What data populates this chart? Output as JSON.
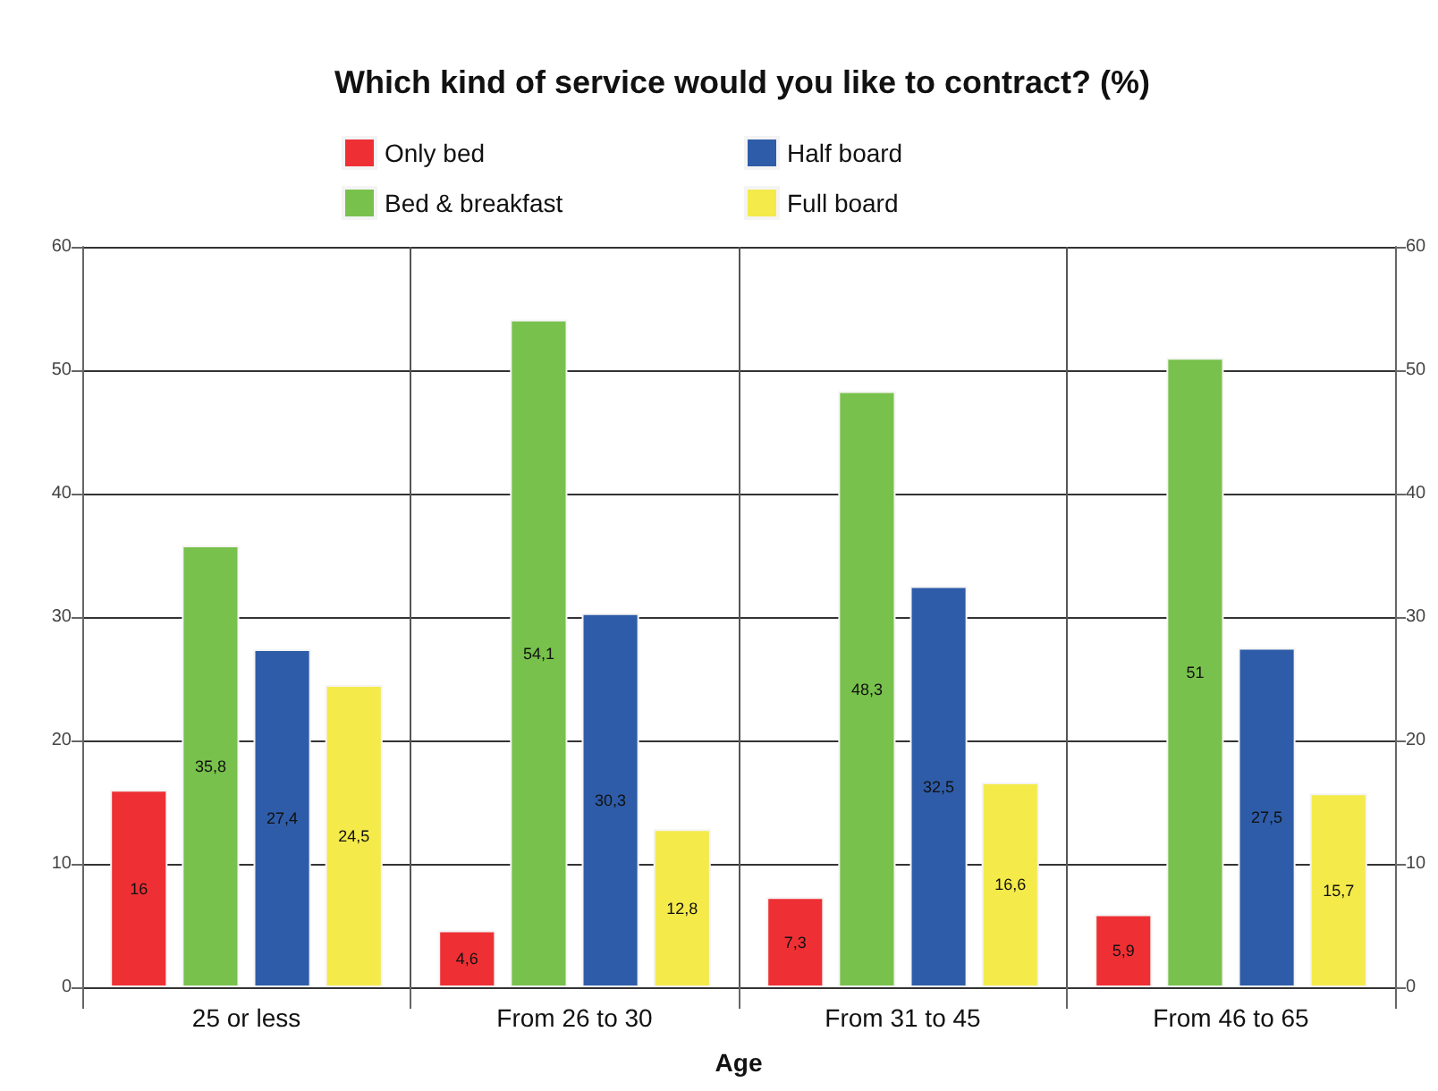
{
  "chart_data": {
    "type": "bar",
    "title": "Which kind of service would you like to contract? (%)",
    "xlabel": "Age",
    "categories": [
      "25 or less",
      "From 26 to 30",
      "From 31 to 45",
      "From 46 to 65"
    ],
    "series": [
      {
        "name": "Only bed",
        "color": "#ee3035",
        "values": [
          16,
          4.6,
          7.3,
          5.9
        ],
        "value_labels": [
          "16",
          "4,6",
          "7,3",
          "5,9"
        ]
      },
      {
        "name": "Bed & breakfast",
        "color": "#78c14c",
        "values": [
          35.8,
          54.1,
          48.3,
          51
        ],
        "value_labels": [
          "35,8",
          "54,1",
          "48,3",
          "51"
        ]
      },
      {
        "name": "Half board",
        "color": "#2e5ca8",
        "values": [
          27.4,
          30.3,
          32.5,
          27.5
        ],
        "value_labels": [
          "27,4",
          "30,3",
          "32,5",
          "27,5"
        ]
      },
      {
        "name": "Full board",
        "color": "#f4ea4a",
        "values": [
          24.5,
          12.8,
          16.6,
          15.7
        ],
        "value_labels": [
          "24,5",
          "12,8",
          "16,6",
          "15,7"
        ]
      }
    ],
    "ylim": [
      0,
      60
    ],
    "yticks": [
      0,
      10,
      20,
      30,
      40,
      50,
      60
    ],
    "y2lim": [
      0,
      60
    ],
    "y2ticks": [
      0,
      10,
      20,
      30,
      40,
      50,
      60
    ],
    "grid": true,
    "legend": "top"
  }
}
